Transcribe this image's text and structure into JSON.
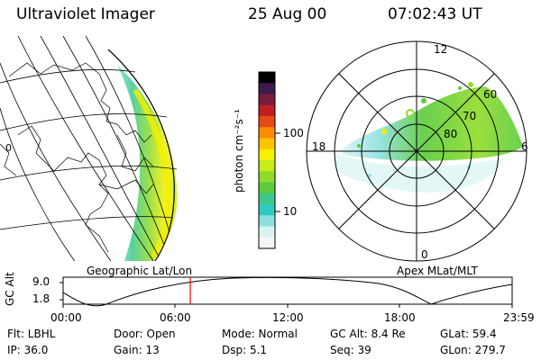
{
  "header": {
    "instrument": "Ultraviolet Imager",
    "date": "25 Aug 00",
    "time": "07:02:43 UT"
  },
  "colorbar": {
    "unit_label": "photon cm⁻²s⁻¹",
    "ticks": [
      "100",
      "10"
    ],
    "colors": [
      "#000000",
      "#3c1b4d",
      "#7a1b3a",
      "#c01f20",
      "#e64a17",
      "#ff8a00",
      "#ffc400",
      "#f4f000",
      "#c6ec1a",
      "#8fdc28",
      "#5acb3a",
      "#3cc88c",
      "#2fcbc2",
      "#8ee0e0",
      "#d9f3f3",
      "#f6f6f6"
    ]
  },
  "left_map": {
    "caption": "Geographic Lat/Lon",
    "side_marker": "0"
  },
  "polar_map": {
    "caption": "Apex MLat/MLT",
    "mlt_labels": {
      "top": "12",
      "right": "6",
      "bottom": "0",
      "left": "18"
    },
    "lat_labels": [
      "60",
      "70",
      "80"
    ]
  },
  "altitude_plot": {
    "ylabel": "GC Alt",
    "yticks": [
      "9.0",
      "1.8"
    ],
    "xticks": [
      "00:00",
      "06:00",
      "12:00",
      "18:00",
      "23:59"
    ],
    "marker_color": "#ff0000"
  },
  "info": {
    "row1": {
      "filter": "Flt: LBHL",
      "door": "Door: Open",
      "mode": "Mode: Normal",
      "gc_alt": "GC Alt: 8.4 Re",
      "glat": "GLat:  59.4"
    },
    "row2": {
      "ip": "IP: 36.0",
      "gain": "Gain: 13",
      "dsp": "Dsp:    5.1",
      "seq": "Seq: 39",
      "glon": "GLon: 279.7"
    }
  }
}
